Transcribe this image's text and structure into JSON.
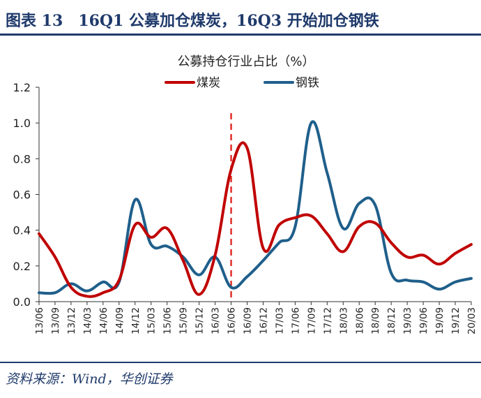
{
  "figure": {
    "title": "图表 13　16Q1 公募加仓煤炭，16Q3 开始加仓钢铁",
    "source": "资料来源：Wind，华创证券"
  },
  "colors": {
    "series1": "#c00000",
    "series2": "#1f5f8b",
    "marker": "#e0302a",
    "header": "#1f3a6b"
  },
  "chart_data": {
    "type": "line",
    "title": "公募持仓行业占比（%）",
    "xlabel": "",
    "ylabel": "",
    "ylim": [
      0,
      1.2
    ],
    "yticks": [
      "0.0",
      "0.2",
      "0.4",
      "0.6",
      "0.8",
      "1.0",
      "1.2"
    ],
    "categories": [
      "13/06",
      "13/09",
      "13/12",
      "14/03",
      "14/06",
      "14/09",
      "14/12",
      "15/03",
      "15/06",
      "15/09",
      "15/12",
      "16/03",
      "16/06",
      "16/09",
      "16/12",
      "17/03",
      "17/06",
      "17/09",
      "17/12",
      "18/03",
      "18/06",
      "18/09",
      "18/12",
      "19/03",
      "19/06",
      "19/09",
      "19/12",
      "20/03"
    ],
    "x_range": [
      "13/06",
      "20/03"
    ],
    "legend_position": "top-center",
    "marker_line": {
      "category": "16/06",
      "style": "dashed"
    },
    "series": [
      {
        "name": "煤炭",
        "color": "#c00000",
        "values": [
          0.38,
          0.25,
          0.08,
          0.03,
          0.05,
          0.12,
          0.43,
          0.36,
          0.41,
          0.23,
          0.04,
          0.26,
          0.74,
          0.86,
          0.3,
          0.43,
          0.47,
          0.48,
          0.38,
          0.28,
          0.42,
          0.44,
          0.33,
          0.25,
          0.26,
          0.21,
          0.27,
          0.32
        ]
      },
      {
        "name": "钢铁",
        "color": "#1f5f8b",
        "values": [
          0.05,
          0.05,
          0.1,
          0.06,
          0.11,
          0.11,
          0.57,
          0.32,
          0.31,
          0.25,
          0.15,
          0.25,
          0.08,
          0.14,
          0.23,
          0.33,
          0.42,
          1.0,
          0.72,
          0.41,
          0.55,
          0.54,
          0.16,
          0.12,
          0.11,
          0.07,
          0.11,
          0.13
        ]
      }
    ]
  }
}
